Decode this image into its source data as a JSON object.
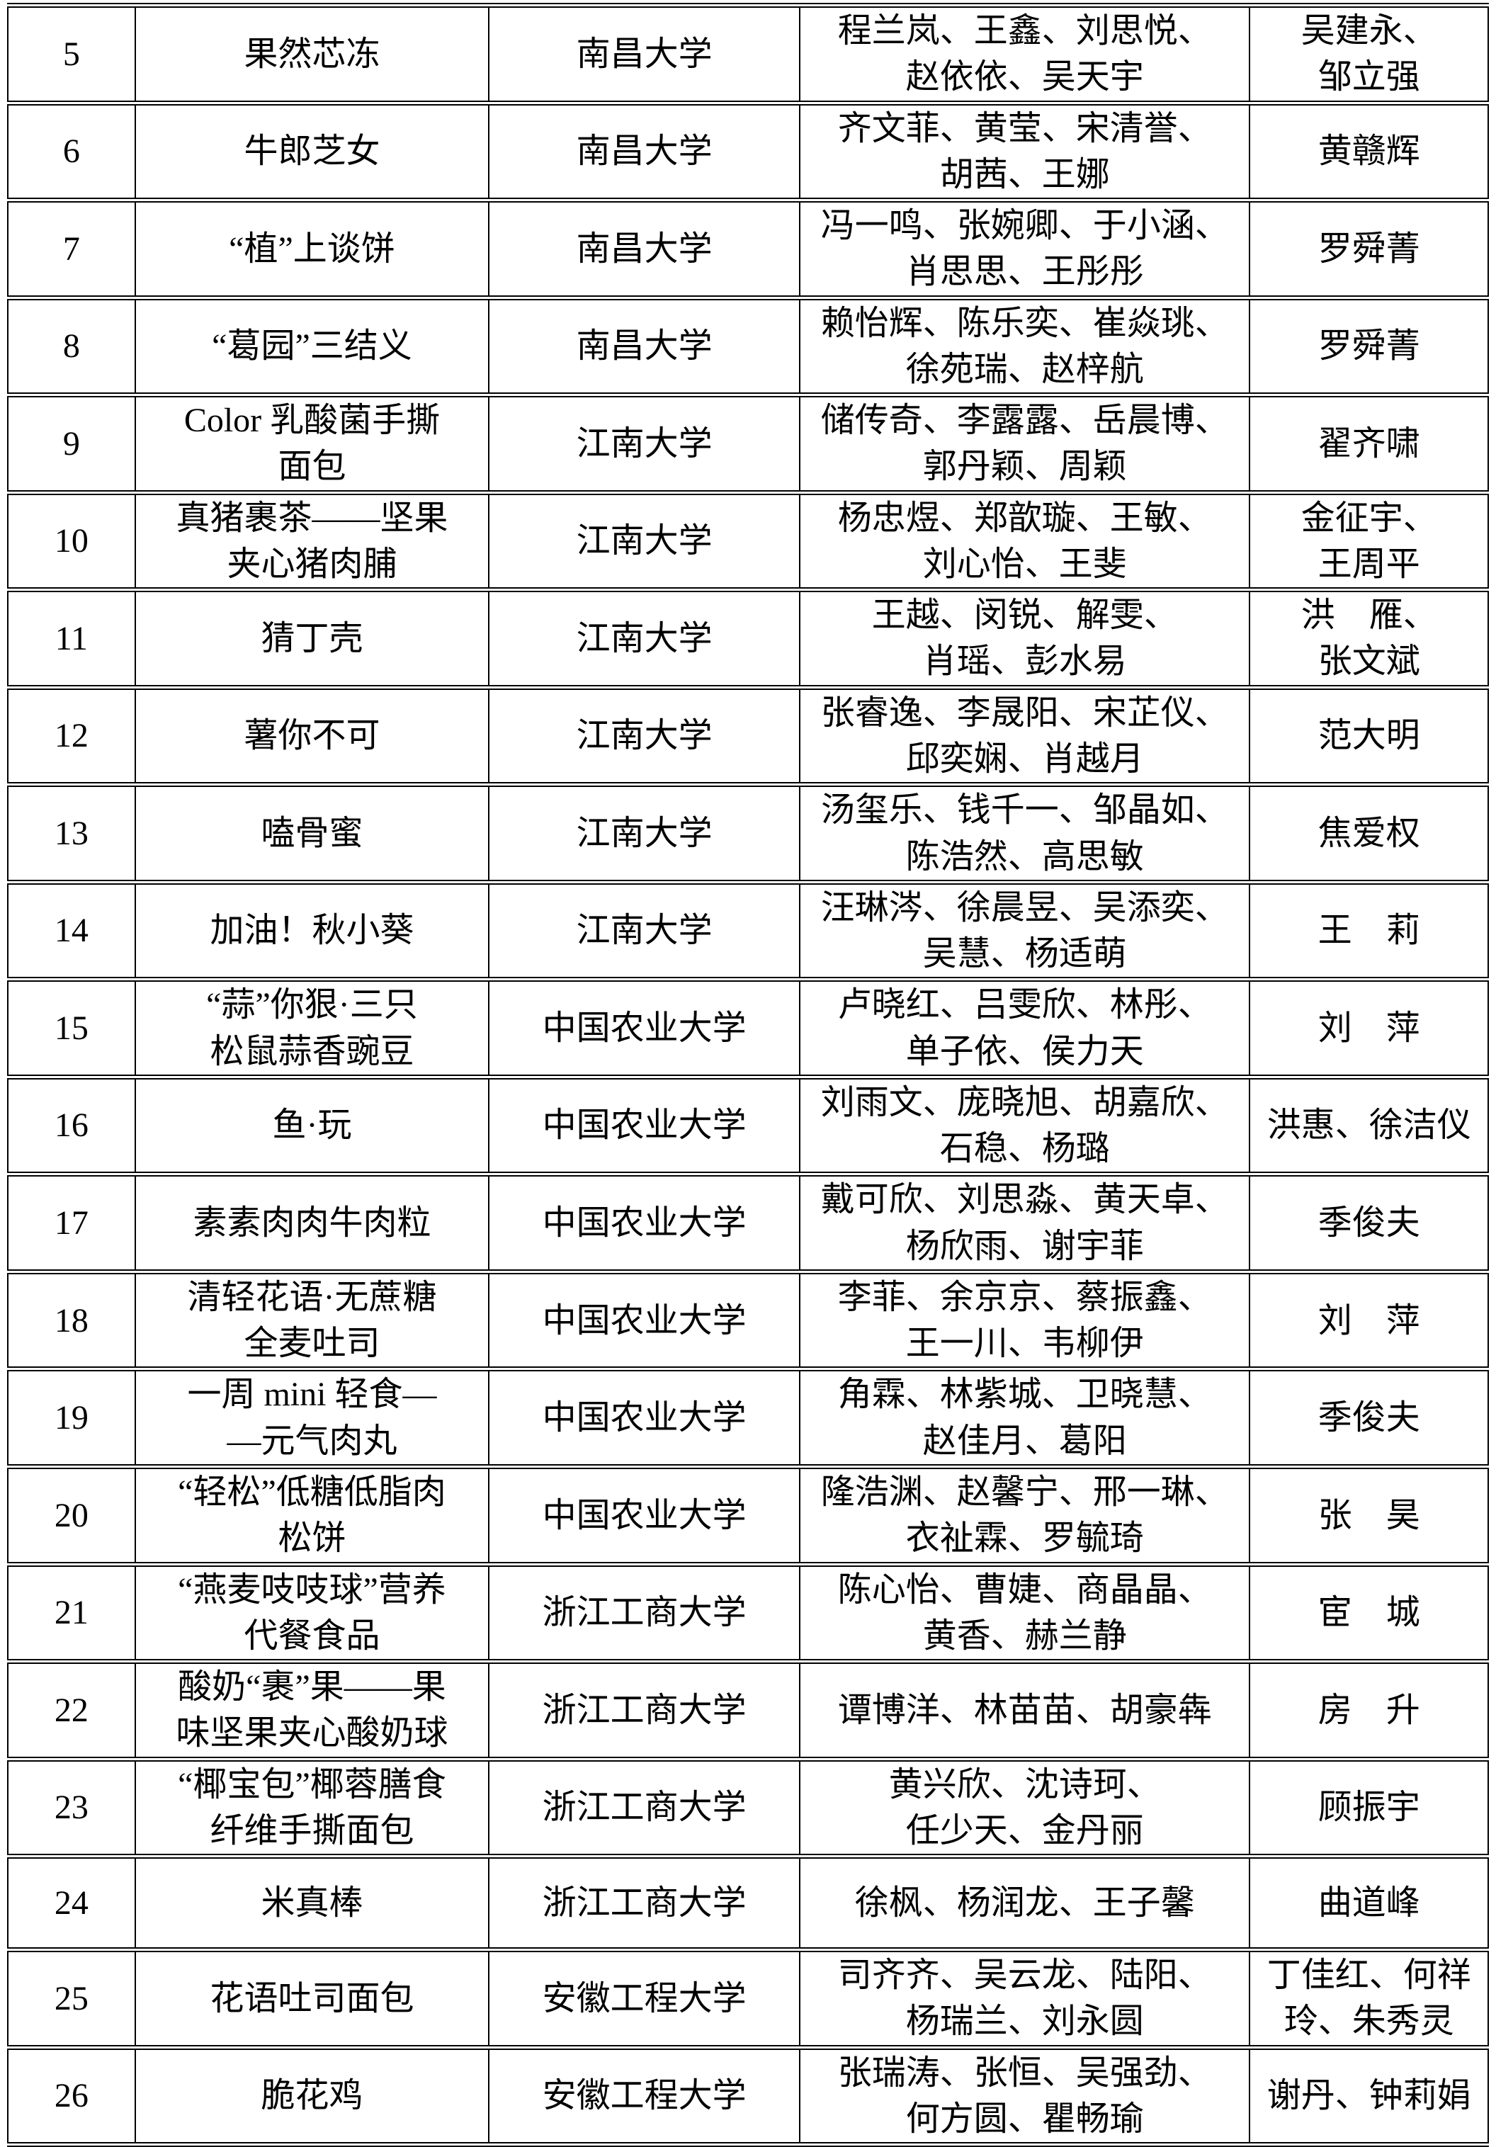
{
  "table": {
    "rows": [
      {
        "no": "5",
        "name": "果然芯冻",
        "university": "南昌大学",
        "members": "程兰岚、王鑫、刘思悦、\n赵依依、吴天宇",
        "advisors": "吴建永、\n邹立强"
      },
      {
        "no": "6",
        "name": "牛郎芝女",
        "university": "南昌大学",
        "members": "齐文菲、黄莹、宋清誉、\n胡茜、王娜",
        "advisors": "黄赣辉"
      },
      {
        "no": "7",
        "name": "“植”上谈饼",
        "university": "南昌大学",
        "members": "冯一鸣、张婉卿、于小涵、\n肖思思、王彤彤",
        "advisors": "罗舜菁"
      },
      {
        "no": "8",
        "name": "“葛园”三结义",
        "university": "南昌大学",
        "members": "赖怡辉、陈乐奕、崔焱珧、\n徐苑瑞、赵梓航",
        "advisors": "罗舜菁"
      },
      {
        "no": "9",
        "name": "Color 乳酸菌手撕\n面包",
        "university": "江南大学",
        "members": "储传奇、李露露、岳晨博、\n郭丹颖、周颖",
        "advisors": "翟齐啸"
      },
      {
        "no": "10",
        "name": "真猪裹茶——坚果\n夹心猪肉脯",
        "university": "江南大学",
        "members": "杨忠煜、郑歆璇、王敏、\n刘心怡、王斐",
        "advisors": "金征宇、\n王周平"
      },
      {
        "no": "11",
        "name": "猜丁壳",
        "university": "江南大学",
        "members": "王越、闵锐、解雯、\n肖瑶、彭水易",
        "advisors": "洪　雁、\n张文斌"
      },
      {
        "no": "12",
        "name": "薯你不可",
        "university": "江南大学",
        "members": "张睿逸、李晟阳、宋芷仪、\n邱奕娴、肖越月",
        "advisors": "范大明"
      },
      {
        "no": "13",
        "name": "嗑骨蜜",
        "university": "江南大学",
        "members": "汤玺乐、钱千一、邹晶如、\n陈浩然、高思敏",
        "advisors": "焦爱权"
      },
      {
        "no": "14",
        "name": "加油！秋小葵",
        "university": "江南大学",
        "members": "汪琳涔、徐晨昱、吴添奕、\n吴慧、杨适萌",
        "advisors": "王　莉"
      },
      {
        "no": "15",
        "name": "“蒜”你狠·三只\n松鼠蒜香豌豆",
        "university": "中国农业大学",
        "members": "卢晓红、吕雯欣、林彤、\n单子依、侯力天",
        "advisors": "刘　萍"
      },
      {
        "no": "16",
        "name": "鱼·玩",
        "university": "中国农业大学",
        "members": "刘雨文、庞晓旭、胡嘉欣、\n石稳、杨璐",
        "advisors": "洪惠、徐洁仪"
      },
      {
        "no": "17",
        "name": "素素肉肉牛肉粒",
        "university": "中国农业大学",
        "members": "戴可欣、刘思淼、黄天卓、\n杨欣雨、谢宇菲",
        "advisors": "季俊夫"
      },
      {
        "no": "18",
        "name": "清轻花语·无蔗糖\n全麦吐司",
        "university": "中国农业大学",
        "members": "李菲、余京京、蔡振鑫、\n王一川、韦柳伊",
        "advisors": "刘　萍"
      },
      {
        "no": "19",
        "name": "一周 mini 轻食—\n—元气肉丸",
        "university": "中国农业大学",
        "members": "角霖、林紫城、卫晓慧、\n赵佳月、葛阳",
        "advisors": "季俊夫"
      },
      {
        "no": "20",
        "name": "“轻松”低糖低脂肉\n松饼",
        "university": "中国农业大学",
        "members": "隆浩渊、赵馨宁、邢一琳、\n衣祉霖、罗毓琦",
        "advisors": "张　昊"
      },
      {
        "no": "21",
        "name": "“燕麦吱吱球”营养\n代餐食品",
        "university": "浙江工商大学",
        "members": "陈心怡、曹婕、商晶晶、\n黄香、赫兰静",
        "advisors": "宦　城"
      },
      {
        "no": "22",
        "name": "酸奶“裹”果——果\n味坚果夹心酸奶球",
        "university": "浙江工商大学",
        "members": "谭博洋、林苗苗、胡豪犇",
        "advisors": "房　升"
      },
      {
        "no": "23",
        "name": "“椰宝包”椰蓉膳食\n纤维手撕面包",
        "university": "浙江工商大学",
        "members": "黄兴欣、沈诗珂、\n任少天、金丹丽",
        "advisors": "顾振宇"
      },
      {
        "no": "24",
        "name": "米真棒",
        "university": "浙江工商大学",
        "members": "徐枫、杨润龙、王子馨",
        "advisors": "曲道峰"
      },
      {
        "no": "25",
        "name": "花语吐司面包",
        "university": "安徽工程大学",
        "members": "司齐齐、吴云龙、陆阳、\n杨瑞兰、刘永圆",
        "advisors": "丁佳红、何祥\n玲、朱秀灵"
      },
      {
        "no": "26",
        "name": "脆花鸡",
        "university": "安徽工程大学",
        "members": "张瑞涛、张恒、吴强劲、\n何方圆、瞿畅瑜",
        "advisors": "谢丹、钟莉娟"
      }
    ]
  }
}
